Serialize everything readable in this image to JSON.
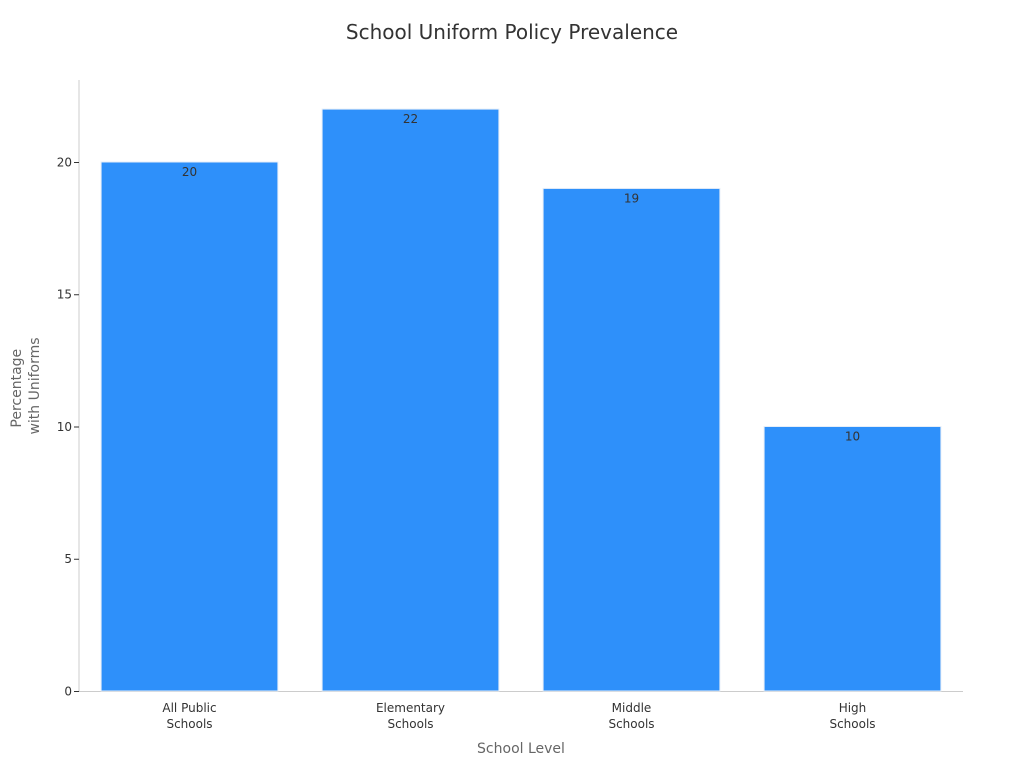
{
  "colors": {
    "bar": "#2e90fa",
    "axis": "#cccccc",
    "text": "#333333",
    "axis_title": "#666666"
  },
  "chart_data": {
    "type": "bar",
    "title": "School Uniform Policy Prevalence",
    "xlabel": "School Level",
    "ylabel_lines": [
      "Percentage",
      "with Uniforms"
    ],
    "categories": [
      [
        "All Public",
        "Schools"
      ],
      [
        "Elementary",
        "Schools"
      ],
      [
        "Middle",
        "Schools"
      ],
      [
        "High",
        "Schools"
      ]
    ],
    "values": [
      20,
      22,
      19,
      10
    ],
    "ylim": [
      0,
      23.1
    ],
    "yticks": [
      0,
      5,
      10,
      15,
      20
    ],
    "grid": false,
    "data_labels": true
  }
}
